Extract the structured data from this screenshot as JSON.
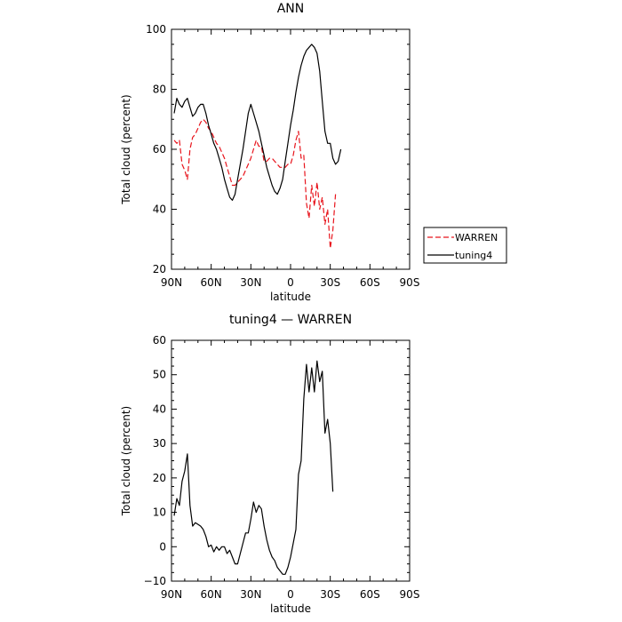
{
  "chart_data": [
    {
      "type": "line",
      "title": "ANN",
      "xlabel": "latitude",
      "ylabel": "Total cloud (percent)",
      "xlim": [
        90,
        -90
      ],
      "ylim": [
        20,
        100
      ],
      "x_ticks": [
        {
          "value": 90,
          "label": "90N"
        },
        {
          "value": 60,
          "label": "60N"
        },
        {
          "value": 30,
          "label": "30N"
        },
        {
          "value": 0,
          "label": "0"
        },
        {
          "value": -30,
          "label": "30S"
        },
        {
          "value": -60,
          "label": "60S"
        },
        {
          "value": -90,
          "label": "90S"
        }
      ],
      "y_ticks": [
        20,
        40,
        60,
        80,
        100
      ],
      "legend_position": "right",
      "series": [
        {
          "name": "WARREN",
          "color": "#e8141c",
          "dash": "dashed",
          "points": [
            [
              88,
              63
            ],
            [
              86,
              62
            ],
            [
              84,
              63
            ],
            [
              82,
              55
            ],
            [
              80,
              53
            ],
            [
              78,
              50
            ],
            [
              76,
              60
            ],
            [
              74,
              64
            ],
            [
              72,
              65
            ],
            [
              70,
              67
            ],
            [
              68,
              69
            ],
            [
              66,
              70
            ],
            [
              64,
              69
            ],
            [
              62,
              67
            ],
            [
              60,
              66
            ],
            [
              58,
              64
            ],
            [
              56,
              62
            ],
            [
              54,
              61
            ],
            [
              52,
              59
            ],
            [
              50,
              57
            ],
            [
              48,
              54
            ],
            [
              46,
              51
            ],
            [
              44,
              48
            ],
            [
              42,
              48
            ],
            [
              40,
              49
            ],
            [
              38,
              50
            ],
            [
              36,
              51
            ],
            [
              34,
              53
            ],
            [
              32,
              55
            ],
            [
              30,
              57
            ],
            [
              28,
              60
            ],
            [
              26,
              63
            ],
            [
              24,
              61
            ],
            [
              22,
              61
            ],
            [
              20,
              56
            ],
            [
              18,
              56
            ],
            [
              16,
              57
            ],
            [
              14,
              57
            ],
            [
              12,
              56
            ],
            [
              10,
              55
            ],
            [
              8,
              54
            ],
            [
              6,
              54
            ],
            [
              4,
              54
            ],
            [
              2,
              55
            ],
            [
              0,
              55
            ],
            [
              -2,
              58
            ],
            [
              -4,
              63
            ],
            [
              -6,
              66
            ],
            [
              -8,
              57
            ],
            [
              -10,
              58
            ],
            [
              -12,
              42
            ],
            [
              -14,
              37
            ],
            [
              -16,
              48
            ],
            [
              -18,
              41
            ],
            [
              -20,
              49
            ],
            [
              -22,
              40
            ],
            [
              -24,
              44
            ],
            [
              -26,
              35
            ],
            [
              -28,
              40
            ],
            [
              -30,
              27
            ],
            [
              -32,
              33
            ],
            [
              -34,
              45
            ]
          ]
        },
        {
          "name": "tuning4",
          "color": "#000000",
          "dash": "solid",
          "points": [
            [
              88,
              72
            ],
            [
              86,
              77
            ],
            [
              84,
              75
            ],
            [
              82,
              74
            ],
            [
              80,
              76
            ],
            [
              78,
              77
            ],
            [
              76,
              74
            ],
            [
              74,
              71
            ],
            [
              72,
              72
            ],
            [
              70,
              74
            ],
            [
              68,
              75
            ],
            [
              66,
              75
            ],
            [
              64,
              72
            ],
            [
              62,
              68
            ],
            [
              60,
              65
            ],
            [
              58,
              62
            ],
            [
              56,
              60
            ],
            [
              54,
              57
            ],
            [
              52,
              54
            ],
            [
              50,
              50
            ],
            [
              48,
              47
            ],
            [
              46,
              44
            ],
            [
              44,
              43
            ],
            [
              42,
              45
            ],
            [
              40,
              50
            ],
            [
              38,
              55
            ],
            [
              36,
              60
            ],
            [
              34,
              66
            ],
            [
              32,
              72
            ],
            [
              30,
              75
            ],
            [
              28,
              72
            ],
            [
              26,
              69
            ],
            [
              24,
              66
            ],
            [
              22,
              62
            ],
            [
              20,
              58
            ],
            [
              18,
              54
            ],
            [
              16,
              51
            ],
            [
              14,
              48
            ],
            [
              12,
              46
            ],
            [
              10,
              45
            ],
            [
              8,
              47
            ],
            [
              6,
              50
            ],
            [
              4,
              56
            ],
            [
              2,
              62
            ],
            [
              0,
              68
            ],
            [
              -2,
              73
            ],
            [
              -4,
              79
            ],
            [
              -6,
              84
            ],
            [
              -8,
              88
            ],
            [
              -10,
              91
            ],
            [
              -12,
              93
            ],
            [
              -14,
              94
            ],
            [
              -16,
              95
            ],
            [
              -18,
              94
            ],
            [
              -20,
              92
            ],
            [
              -22,
              86
            ],
            [
              -24,
              76
            ],
            [
              -26,
              66
            ],
            [
              -28,
              62
            ],
            [
              -30,
              62
            ],
            [
              -32,
              57
            ],
            [
              -34,
              55
            ],
            [
              -36,
              56
            ],
            [
              -38,
              60
            ]
          ]
        }
      ]
    },
    {
      "type": "line",
      "title": "tuning4 — WARREN",
      "xlabel": "latitude",
      "ylabel": "Total cloud (percent)",
      "xlim": [
        90,
        -90
      ],
      "ylim": [
        -10,
        60
      ],
      "x_ticks": [
        {
          "value": 90,
          "label": "90N"
        },
        {
          "value": 60,
          "label": "60N"
        },
        {
          "value": 30,
          "label": "30N"
        },
        {
          "value": 0,
          "label": "0"
        },
        {
          "value": -30,
          "label": "30S"
        },
        {
          "value": -60,
          "label": "60S"
        },
        {
          "value": -90,
          "label": "90S"
        }
      ],
      "y_ticks": [
        -10,
        0,
        10,
        20,
        30,
        40,
        50,
        60
      ],
      "series": [
        {
          "color": "#000000",
          "dash": "solid",
          "points": [
            [
              88,
              9
            ],
            [
              86,
              14
            ],
            [
              84,
              12
            ],
            [
              82,
              19
            ],
            [
              80,
              22
            ],
            [
              78,
              27
            ],
            [
              76,
              12
            ],
            [
              74,
              6
            ],
            [
              72,
              7
            ],
            [
              70,
              6.5
            ],
            [
              68,
              6
            ],
            [
              66,
              5
            ],
            [
              64,
              3
            ],
            [
              62,
              0
            ],
            [
              60,
              0.5
            ],
            [
              58,
              -1.5
            ],
            [
              56,
              0
            ],
            [
              54,
              -1
            ],
            [
              52,
              0
            ],
            [
              50,
              0
            ],
            [
              48,
              -2
            ],
            [
              46,
              -1
            ],
            [
              44,
              -3
            ],
            [
              42,
              -5
            ],
            [
              40,
              -5
            ],
            [
              38,
              -2
            ],
            [
              36,
              1
            ],
            [
              34,
              4
            ],
            [
              32,
              4
            ],
            [
              30,
              8
            ],
            [
              28,
              13
            ],
            [
              26,
              10
            ],
            [
              24,
              12
            ],
            [
              22,
              11
            ],
            [
              20,
              6
            ],
            [
              18,
              2
            ],
            [
              16,
              -1
            ],
            [
              14,
              -3
            ],
            [
              12,
              -4
            ],
            [
              10,
              -6
            ],
            [
              8,
              -7
            ],
            [
              6,
              -8
            ],
            [
              4,
              -8
            ],
            [
              2,
              -6
            ],
            [
              0,
              -3
            ],
            [
              -2,
              1
            ],
            [
              -4,
              5
            ],
            [
              -6,
              21
            ],
            [
              -8,
              25
            ],
            [
              -10,
              43
            ],
            [
              -12,
              53
            ],
            [
              -14,
              45
            ],
            [
              -16,
              52
            ],
            [
              -18,
              45
            ],
            [
              -20,
              54
            ],
            [
              -22,
              48
            ],
            [
              -24,
              51
            ],
            [
              -26,
              33
            ],
            [
              -28,
              37
            ],
            [
              -30,
              30
            ],
            [
              -32,
              16
            ]
          ]
        }
      ]
    }
  ]
}
